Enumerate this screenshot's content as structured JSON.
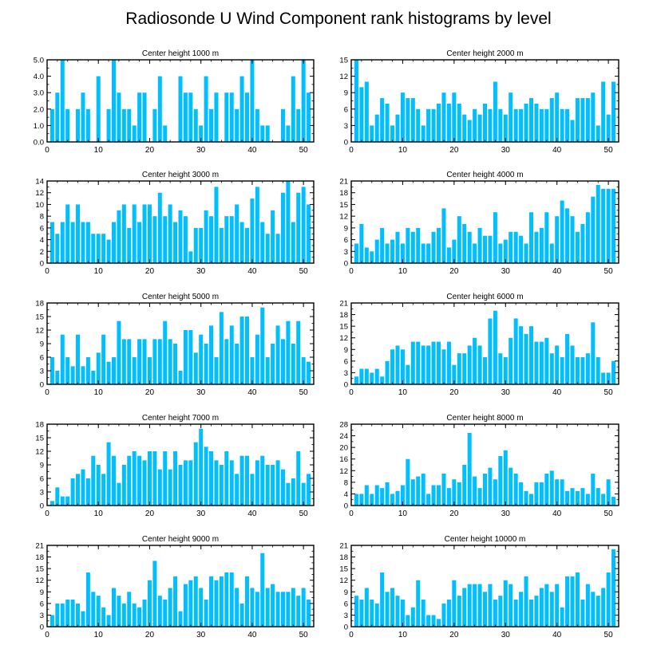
{
  "title": "Radiosonde U Wind Component rank histograms by level",
  "colors": {
    "bar": "#00bfff",
    "frame": "#000000",
    "background": "#ffffff"
  },
  "chart_data": [
    {
      "type": "bar",
      "title": "Center height 1000 m",
      "x": [
        1,
        2,
        3,
        4,
        5,
        6,
        7,
        8,
        9,
        10,
        11,
        12,
        13,
        14,
        15,
        16,
        17,
        18,
        19,
        20,
        21,
        22,
        23,
        24,
        25,
        26,
        27,
        28,
        29,
        30,
        31,
        32,
        33,
        34,
        35,
        36,
        37,
        38,
        39,
        40,
        41,
        42,
        43,
        44,
        45,
        46,
        47,
        48,
        49,
        50,
        51
      ],
      "values": [
        2,
        3,
        5,
        2,
        0,
        2,
        3,
        2,
        0,
        4,
        0,
        2,
        5,
        3,
        2,
        2,
        1,
        3,
        3,
        0,
        2,
        4,
        1,
        0,
        0,
        4,
        3,
        3,
        2,
        1,
        4,
        2,
        3,
        0,
        3,
        3,
        2,
        4,
        3,
        5,
        2,
        1,
        1,
        0,
        0,
        2,
        1,
        4,
        2,
        5,
        3
      ],
      "xlim": [
        0,
        52
      ],
      "ylim": [
        0,
        5
      ],
      "xticks": [
        0,
        10,
        20,
        30,
        40,
        50
      ],
      "yticks": [
        0,
        1,
        2,
        3,
        4,
        5
      ],
      "ytick_labels": [
        "0.0",
        "1.0",
        "2.0",
        "3.0",
        "4.0",
        "5.0"
      ],
      "yaxis_side": "left"
    },
    {
      "type": "bar",
      "title": "Center height 2000 m",
      "x": [
        1,
        2,
        3,
        4,
        5,
        6,
        7,
        8,
        9,
        10,
        11,
        12,
        13,
        14,
        15,
        16,
        17,
        18,
        19,
        20,
        21,
        22,
        23,
        24,
        25,
        26,
        27,
        28,
        29,
        30,
        31,
        32,
        33,
        34,
        35,
        36,
        37,
        38,
        39,
        40,
        41,
        42,
        43,
        44,
        45,
        46,
        47,
        48,
        49,
        50,
        51
      ],
      "values": [
        15,
        10,
        11,
        3,
        5,
        8,
        7,
        3,
        5,
        9,
        8,
        8,
        6,
        3,
        6,
        6,
        7,
        9,
        7,
        9,
        7,
        5,
        4,
        6,
        5,
        7,
        6,
        11,
        6,
        5,
        9,
        6,
        6,
        7,
        8,
        7,
        6,
        6,
        8,
        9,
        6,
        6,
        4,
        8,
        8,
        8,
        9,
        3,
        11,
        5,
        11
      ],
      "xlim": [
        0,
        52
      ],
      "ylim": [
        0,
        15
      ],
      "xticks": [
        0,
        10,
        20,
        30,
        40,
        50
      ],
      "yticks": [
        0,
        3,
        6,
        9,
        12,
        15
      ],
      "ytick_labels": [
        "0",
        "3",
        "6",
        "9",
        "12",
        "15"
      ],
      "yaxis_side": "right_labels_left"
    },
    {
      "type": "bar",
      "title": "Center height 3000 m",
      "x": [
        1,
        2,
        3,
        4,
        5,
        6,
        7,
        8,
        9,
        10,
        11,
        12,
        13,
        14,
        15,
        16,
        17,
        18,
        19,
        20,
        21,
        22,
        23,
        24,
        25,
        26,
        27,
        28,
        29,
        30,
        31,
        32,
        33,
        34,
        35,
        36,
        37,
        38,
        39,
        40,
        41,
        42,
        43,
        44,
        45,
        46,
        47,
        48,
        49,
        50,
        51
      ],
      "values": [
        7,
        5,
        7,
        10,
        7,
        10,
        7,
        7,
        5,
        5,
        5,
        4,
        7,
        9,
        10,
        6,
        10,
        7,
        10,
        10,
        8,
        12,
        8,
        10,
        7,
        9,
        8,
        2,
        6,
        6,
        9,
        8,
        13,
        6,
        8,
        8,
        10,
        7,
        6,
        11,
        13,
        7,
        5,
        9,
        5,
        12,
        14,
        7,
        12,
        13,
        10
      ],
      "xlim": [
        0,
        52
      ],
      "ylim": [
        0,
        14
      ],
      "xticks": [
        0,
        10,
        20,
        30,
        40,
        50
      ],
      "yticks": [
        0,
        2,
        4,
        6,
        8,
        10,
        12,
        14
      ],
      "ytick_labels": [
        "0",
        "2",
        "4",
        "6",
        "8",
        "10",
        "12",
        "14"
      ],
      "yaxis_side": "left"
    },
    {
      "type": "bar",
      "title": "Center height 4000 m",
      "x": [
        1,
        2,
        3,
        4,
        5,
        6,
        7,
        8,
        9,
        10,
        11,
        12,
        13,
        14,
        15,
        16,
        17,
        18,
        19,
        20,
        21,
        22,
        23,
        24,
        25,
        26,
        27,
        28,
        29,
        30,
        31,
        32,
        33,
        34,
        35,
        36,
        37,
        38,
        39,
        40,
        41,
        42,
        43,
        44,
        45,
        46,
        47,
        48,
        49,
        50,
        51
      ],
      "values": [
        5,
        10,
        4,
        3,
        6,
        9,
        5,
        6,
        8,
        5,
        9,
        8,
        9,
        5,
        5,
        8,
        9,
        14,
        4,
        6,
        12,
        10,
        8,
        5,
        9,
        7,
        7,
        13,
        5,
        6,
        8,
        8,
        7,
        5,
        13,
        8,
        9,
        13,
        5,
        12,
        16,
        14,
        12,
        8,
        10,
        13,
        17,
        20,
        19,
        19,
        19
      ],
      "xlim": [
        0,
        52
      ],
      "ylim": [
        0,
        21
      ],
      "xticks": [
        0,
        10,
        20,
        30,
        40,
        50
      ],
      "yticks": [
        0,
        3,
        6,
        9,
        12,
        15,
        18,
        21
      ],
      "ytick_labels": [
        "0",
        "3",
        "6",
        "9",
        "12",
        "15",
        "18",
        "21"
      ],
      "yaxis_side": "right_labels_left"
    },
    {
      "type": "bar",
      "title": "Center height 5000 m",
      "x": [
        1,
        2,
        3,
        4,
        5,
        6,
        7,
        8,
        9,
        10,
        11,
        12,
        13,
        14,
        15,
        16,
        17,
        18,
        19,
        20,
        21,
        22,
        23,
        24,
        25,
        26,
        27,
        28,
        29,
        30,
        31,
        32,
        33,
        34,
        35,
        36,
        37,
        38,
        39,
        40,
        41,
        42,
        43,
        44,
        45,
        46,
        47,
        48,
        49,
        50,
        51
      ],
      "values": [
        6,
        3,
        11,
        6,
        4,
        11,
        4,
        6,
        3,
        7,
        11,
        5,
        6,
        14,
        10,
        10,
        6,
        10,
        10,
        6,
        10,
        10,
        14,
        10,
        9,
        3,
        12,
        12,
        7,
        11,
        9,
        13,
        6,
        16,
        10,
        13,
        9,
        15,
        15,
        6,
        11,
        17,
        6,
        9,
        13,
        10,
        14,
        9,
        14,
        6,
        5
      ],
      "xlim": [
        0,
        52
      ],
      "ylim": [
        0,
        18
      ],
      "xticks": [
        0,
        10,
        20,
        30,
        40,
        50
      ],
      "yticks": [
        0,
        3,
        6,
        9,
        12,
        15,
        18
      ],
      "ytick_labels": [
        "0",
        "3",
        "6",
        "9",
        "12",
        "15",
        "18"
      ],
      "yaxis_side": "left"
    },
    {
      "type": "bar",
      "title": "Center height 6000 m",
      "x": [
        1,
        2,
        3,
        4,
        5,
        6,
        7,
        8,
        9,
        10,
        11,
        12,
        13,
        14,
        15,
        16,
        17,
        18,
        19,
        20,
        21,
        22,
        23,
        24,
        25,
        26,
        27,
        28,
        29,
        30,
        31,
        32,
        33,
        34,
        35,
        36,
        37,
        38,
        39,
        40,
        41,
        42,
        43,
        44,
        45,
        46,
        47,
        48,
        49,
        50,
        51
      ],
      "values": [
        2,
        4,
        4,
        3,
        4,
        2,
        6,
        9,
        10,
        9,
        5,
        11,
        11,
        10,
        10,
        11,
        11,
        9,
        11,
        5,
        8,
        8,
        10,
        12,
        10,
        7,
        17,
        19,
        8,
        7,
        12,
        17,
        15,
        13,
        15,
        11,
        11,
        12,
        8,
        10,
        7,
        13,
        10,
        7,
        7,
        8,
        16,
        7,
        3,
        3,
        6
      ],
      "xlim": [
        0,
        52
      ],
      "ylim": [
        0,
        21
      ],
      "xticks": [
        0,
        10,
        20,
        30,
        40,
        50
      ],
      "yticks": [
        0,
        3,
        6,
        9,
        12,
        15,
        18,
        21
      ],
      "ytick_labels": [
        "0",
        "3",
        "6",
        "9",
        "12",
        "15",
        "18",
        "21"
      ],
      "yaxis_side": "right_labels_left"
    },
    {
      "type": "bar",
      "title": "Center height 7000 m",
      "x": [
        1,
        2,
        3,
        4,
        5,
        6,
        7,
        8,
        9,
        10,
        11,
        12,
        13,
        14,
        15,
        16,
        17,
        18,
        19,
        20,
        21,
        22,
        23,
        24,
        25,
        26,
        27,
        28,
        29,
        30,
        31,
        32,
        33,
        34,
        35,
        36,
        37,
        38,
        39,
        40,
        41,
        42,
        43,
        44,
        45,
        46,
        47,
        48,
        49,
        50,
        51
      ],
      "values": [
        1,
        4,
        2,
        2,
        6,
        7,
        8,
        6,
        11,
        9,
        7,
        14,
        11,
        5,
        9,
        11,
        12,
        11,
        10,
        12,
        12,
        8,
        12,
        8,
        12,
        9,
        10,
        10,
        14,
        17,
        13,
        12,
        10,
        9,
        12,
        10,
        7,
        11,
        11,
        7,
        10,
        11,
        9,
        9,
        10,
        8,
        5,
        6,
        12,
        5,
        7
      ],
      "xlim": [
        0,
        52
      ],
      "ylim": [
        0,
        18
      ],
      "xticks": [
        0,
        10,
        20,
        30,
        40,
        50
      ],
      "yticks": [
        0,
        3,
        6,
        9,
        12,
        15,
        18
      ],
      "ytick_labels": [
        "0",
        "3",
        "6",
        "9",
        "12",
        "15",
        "18"
      ],
      "yaxis_side": "left"
    },
    {
      "type": "bar",
      "title": "Center height 8000 m",
      "x": [
        1,
        2,
        3,
        4,
        5,
        6,
        7,
        8,
        9,
        10,
        11,
        12,
        13,
        14,
        15,
        16,
        17,
        18,
        19,
        20,
        21,
        22,
        23,
        24,
        25,
        26,
        27,
        28,
        29,
        30,
        31,
        32,
        33,
        34,
        35,
        36,
        37,
        38,
        39,
        40,
        41,
        42,
        43,
        44,
        45,
        46,
        47,
        48,
        49,
        50,
        51
      ],
      "values": [
        4,
        4,
        7,
        4,
        7,
        6,
        8,
        4,
        5,
        7,
        16,
        9,
        10,
        11,
        4,
        7,
        7,
        11,
        6,
        9,
        8,
        14,
        25,
        10,
        6,
        11,
        13,
        9,
        17,
        19,
        13,
        11,
        8,
        5,
        4,
        8,
        8,
        11,
        12,
        9,
        9,
        5,
        6,
        5,
        6,
        4,
        11,
        6,
        4,
        9,
        3
      ],
      "xlim": [
        0,
        52
      ],
      "ylim": [
        0,
        28
      ],
      "xticks": [
        0,
        10,
        20,
        30,
        40,
        50
      ],
      "yticks": [
        0,
        4,
        8,
        12,
        16,
        20,
        24,
        28
      ],
      "ytick_labels": [
        "0",
        "4",
        "8",
        "12",
        "16",
        "20",
        "24",
        "28"
      ],
      "yaxis_side": "right_labels_left"
    },
    {
      "type": "bar",
      "title": "Center height 9000 m",
      "x": [
        1,
        2,
        3,
        4,
        5,
        6,
        7,
        8,
        9,
        10,
        11,
        12,
        13,
        14,
        15,
        16,
        17,
        18,
        19,
        20,
        21,
        22,
        23,
        24,
        25,
        26,
        27,
        28,
        29,
        30,
        31,
        32,
        33,
        34,
        35,
        36,
        37,
        38,
        39,
        40,
        41,
        42,
        43,
        44,
        45,
        46,
        47,
        48,
        49,
        50,
        51
      ],
      "values": [
        3,
        6,
        6,
        7,
        7,
        6,
        4,
        14,
        9,
        8,
        5,
        3,
        10,
        8,
        6,
        9,
        6,
        5,
        7,
        12,
        17,
        8,
        7,
        10,
        13,
        4,
        11,
        12,
        13,
        10,
        7,
        13,
        12,
        13,
        14,
        14,
        10,
        6,
        13,
        10,
        9,
        19,
        10,
        11,
        9,
        9,
        9,
        10,
        8,
        10,
        7
      ],
      "xlim": [
        0,
        52
      ],
      "ylim": [
        0,
        21
      ],
      "xticks": [
        0,
        10,
        20,
        30,
        40,
        50
      ],
      "yticks": [
        0,
        3,
        6,
        9,
        12,
        15,
        18,
        21
      ],
      "ytick_labels": [
        "0",
        "3",
        "6",
        "9",
        "12",
        "15",
        "18",
        "21"
      ],
      "yaxis_side": "left"
    },
    {
      "type": "bar",
      "title": "Center height 10000 m",
      "x": [
        1,
        2,
        3,
        4,
        5,
        6,
        7,
        8,
        9,
        10,
        11,
        12,
        13,
        14,
        15,
        16,
        17,
        18,
        19,
        20,
        21,
        22,
        23,
        24,
        25,
        26,
        27,
        28,
        29,
        30,
        31,
        32,
        33,
        34,
        35,
        36,
        37,
        38,
        39,
        40,
        41,
        42,
        43,
        44,
        45,
        46,
        47,
        48,
        49,
        50,
        51
      ],
      "values": [
        8,
        7,
        10,
        7,
        6,
        14,
        9,
        10,
        8,
        7,
        3,
        5,
        12,
        7,
        3,
        3,
        2,
        6,
        7,
        12,
        8,
        10,
        11,
        11,
        11,
        9,
        11,
        7,
        8,
        12,
        11,
        7,
        9,
        13,
        7,
        8,
        10,
        11,
        9,
        11,
        5,
        13,
        13,
        14,
        7,
        11,
        9,
        8,
        10,
        14,
        20
      ],
      "xlim": [
        0,
        52
      ],
      "ylim": [
        0,
        21
      ],
      "xticks": [
        0,
        10,
        20,
        30,
        40,
        50
      ],
      "yticks": [
        0,
        3,
        6,
        9,
        12,
        15,
        18,
        21
      ],
      "ytick_labels": [
        "0",
        "3",
        "6",
        "9",
        "12",
        "15",
        "18",
        "21"
      ],
      "yaxis_side": "right_labels_left"
    }
  ]
}
